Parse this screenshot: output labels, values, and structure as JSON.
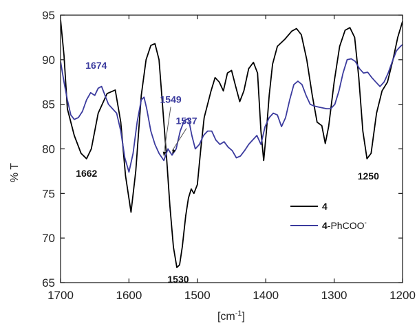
{
  "chart_data": {
    "type": "line",
    "xlabel": "[cm",
    "xlabel_sup": "-1",
    "xlabel_suffix": "]",
    "ylabel": "% T",
    "xlim": [
      1700,
      1200
    ],
    "ylim": [
      65,
      95
    ],
    "x_ticks": [
      1700,
      1600,
      1500,
      1400,
      1300,
      1200
    ],
    "y_ticks": [
      65,
      70,
      75,
      80,
      85,
      90,
      95
    ],
    "grid": false,
    "legend_position": "lower-right",
    "series": [
      {
        "name": "4",
        "name_bold": "4",
        "name_suffix": "",
        "name_sup": "",
        "color": "#000000",
        "points": [
          [
            1700,
            94.5
          ],
          [
            1695,
            90.5
          ],
          [
            1690,
            84.5
          ],
          [
            1680,
            81.5
          ],
          [
            1670,
            79.5
          ],
          [
            1662,
            78.9
          ],
          [
            1655,
            80.0
          ],
          [
            1645,
            84.0
          ],
          [
            1632,
            86.2
          ],
          [
            1620,
            86.6
          ],
          [
            1612,
            83.0
          ],
          [
            1605,
            77.0
          ],
          [
            1597,
            72.9
          ],
          [
            1590,
            77.5
          ],
          [
            1582,
            86.0
          ],
          [
            1575,
            90.0
          ],
          [
            1568,
            91.6
          ],
          [
            1562,
            91.8
          ],
          [
            1556,
            90.0
          ],
          [
            1550,
            84.0
          ],
          [
            1545,
            79.0
          ],
          [
            1540,
            73.5
          ],
          [
            1535,
            69.0
          ],
          [
            1530,
            66.7
          ],
          [
            1526,
            67.0
          ],
          [
            1522,
            69.0
          ],
          [
            1517,
            72.5
          ],
          [
            1513,
            74.5
          ],
          [
            1509,
            75.5
          ],
          [
            1505,
            75.0
          ],
          [
            1500,
            76.0
          ],
          [
            1495,
            80.0
          ],
          [
            1490,
            83.5
          ],
          [
            1485,
            85.0
          ],
          [
            1480,
            86.5
          ],
          [
            1474,
            88.0
          ],
          [
            1468,
            87.5
          ],
          [
            1462,
            86.5
          ],
          [
            1456,
            88.5
          ],
          [
            1450,
            88.8
          ],
          [
            1444,
            87.0
          ],
          [
            1438,
            85.3
          ],
          [
            1432,
            86.5
          ],
          [
            1425,
            89.0
          ],
          [
            1418,
            89.7
          ],
          [
            1412,
            88.5
          ],
          [
            1407,
            82.0
          ],
          [
            1403,
            78.7
          ],
          [
            1399,
            82.0
          ],
          [
            1395,
            86.0
          ],
          [
            1390,
            89.5
          ],
          [
            1383,
            91.5
          ],
          [
            1372,
            92.3
          ],
          [
            1362,
            93.2
          ],
          [
            1355,
            93.5
          ],
          [
            1348,
            92.8
          ],
          [
            1340,
            90.0
          ],
          [
            1332,
            86.0
          ],
          [
            1325,
            83.0
          ],
          [
            1318,
            82.6
          ],
          [
            1313,
            80.6
          ],
          [
            1308,
            82.5
          ],
          [
            1300,
            87.5
          ],
          [
            1292,
            91.5
          ],
          [
            1284,
            93.3
          ],
          [
            1277,
            93.6
          ],
          [
            1270,
            92.5
          ],
          [
            1264,
            88.0
          ],
          [
            1258,
            82.0
          ],
          [
            1252,
            78.9
          ],
          [
            1246,
            79.5
          ],
          [
            1238,
            84.0
          ],
          [
            1230,
            86.5
          ],
          [
            1222,
            87.5
          ],
          [
            1214,
            90.0
          ],
          [
            1207,
            92.5
          ],
          [
            1200,
            94.3
          ]
        ]
      },
      {
        "name": "4-PhCOO-",
        "name_bold": "4",
        "name_suffix": "-PhCOO",
        "name_sup": "-",
        "color": "#3b3b9e",
        "points": [
          [
            1700,
            89.8
          ],
          [
            1695,
            87.5
          ],
          [
            1690,
            85.5
          ],
          [
            1685,
            83.8
          ],
          [
            1680,
            83.3
          ],
          [
            1674,
            83.5
          ],
          [
            1668,
            84.2
          ],
          [
            1662,
            85.5
          ],
          [
            1656,
            86.3
          ],
          [
            1650,
            86.0
          ],
          [
            1645,
            86.8
          ],
          [
            1640,
            87.0
          ],
          [
            1636,
            86.2
          ],
          [
            1630,
            85.0
          ],
          [
            1624,
            84.5
          ],
          [
            1618,
            84.0
          ],
          [
            1612,
            82.0
          ],
          [
            1606,
            79.0
          ],
          [
            1600,
            77.4
          ],
          [
            1594,
            79.5
          ],
          [
            1588,
            83.0
          ],
          [
            1582,
            85.5
          ],
          [
            1578,
            85.8
          ],
          [
            1574,
            84.5
          ],
          [
            1568,
            82.0
          ],
          [
            1562,
            80.5
          ],
          [
            1556,
            79.5
          ],
          [
            1549,
            78.7
          ],
          [
            1543,
            80.0
          ],
          [
            1537,
            79.3
          ],
          [
            1531,
            80.0
          ],
          [
            1525,
            82.0
          ],
          [
            1519,
            83.2
          ],
          [
            1513,
            83.4
          ],
          [
            1508,
            81.5
          ],
          [
            1503,
            80.0
          ],
          [
            1497,
            80.5
          ],
          [
            1491,
            81.5
          ],
          [
            1485,
            82.0
          ],
          [
            1479,
            82.0
          ],
          [
            1473,
            81.0
          ],
          [
            1467,
            80.5
          ],
          [
            1461,
            80.8
          ],
          [
            1455,
            80.2
          ],
          [
            1449,
            79.8
          ],
          [
            1443,
            79.0
          ],
          [
            1437,
            79.2
          ],
          [
            1431,
            79.8
          ],
          [
            1425,
            80.5
          ],
          [
            1419,
            81.0
          ],
          [
            1413,
            81.5
          ],
          [
            1407,
            80.5
          ],
          [
            1401,
            82.5
          ],
          [
            1395,
            83.5
          ],
          [
            1389,
            84.0
          ],
          [
            1383,
            83.8
          ],
          [
            1377,
            82.5
          ],
          [
            1371,
            83.5
          ],
          [
            1365,
            85.5
          ],
          [
            1359,
            87.2
          ],
          [
            1353,
            87.6
          ],
          [
            1347,
            87.2
          ],
          [
            1341,
            86.0
          ],
          [
            1335,
            85.0
          ],
          [
            1329,
            84.8
          ],
          [
            1323,
            84.7
          ],
          [
            1317,
            84.6
          ],
          [
            1311,
            84.5
          ],
          [
            1305,
            84.5
          ],
          [
            1299,
            85.0
          ],
          [
            1293,
            86.5
          ],
          [
            1287,
            88.5
          ],
          [
            1281,
            90.0
          ],
          [
            1275,
            90.1
          ],
          [
            1269,
            89.8
          ],
          [
            1263,
            89.0
          ],
          [
            1257,
            88.5
          ],
          [
            1251,
            88.6
          ],
          [
            1245,
            88.0
          ],
          [
            1239,
            87.5
          ],
          [
            1233,
            87.0
          ],
          [
            1227,
            87.5
          ],
          [
            1221,
            88.5
          ],
          [
            1215,
            89.8
          ],
          [
            1209,
            91.0
          ],
          [
            1203,
            91.5
          ],
          [
            1200,
            91.7
          ]
        ]
      }
    ],
    "annotations": [
      {
        "label": "1662",
        "x": 1662,
        "y": 78.9,
        "color": "#111111",
        "arrow": false
      },
      {
        "label": "1530",
        "x": 1530,
        "y": 66.7,
        "color": "#111111",
        "arrow": false
      },
      {
        "label": "1250",
        "x": 1250,
        "y": 78.9,
        "color": "#111111",
        "arrow": false
      },
      {
        "label": "1674",
        "x": 1674,
        "y": 83.5,
        "color": "#3b3b9e",
        "arrow": false
      },
      {
        "label": "1549",
        "x": 1549,
        "y": 79.0,
        "color": "#3b3b9e",
        "arrow": true
      },
      {
        "label": "1537",
        "x": 1537,
        "y": 79.3,
        "color": "#3b3b9e",
        "arrow": true
      }
    ]
  }
}
